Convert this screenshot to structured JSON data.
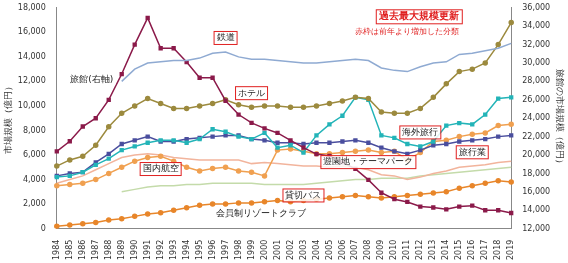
{
  "chart_data": {
    "type": "line",
    "y_label": "市場規模（億円）",
    "y2_label": "旅館の市場規模（億円）",
    "annotations": [
      "過去最大規模更新",
      "赤枠は前年より増加した分類"
    ],
    "categories": [
      "1984",
      "1985",
      "1986",
      "1987",
      "1988",
      "1989",
      "1990",
      "1991",
      "1992",
      "1993",
      "1994",
      "1995",
      "1996",
      "1997",
      "1998",
      "1999",
      "2000",
      "2001",
      "2002",
      "2003",
      "2004",
      "2005",
      "2006",
      "2007",
      "2008",
      "2009",
      "2010",
      "2011",
      "2012",
      "2013",
      "2014",
      "2015",
      "2016",
      "2017",
      "2018",
      "2019"
    ],
    "ylim": [
      0,
      18000
    ],
    "yticks": [
      0,
      {
        "value": 2000,
        "label": "2,000"
      },
      {
        "value": 4000,
        "label": "4,000"
      },
      {
        "value": 6000,
        "label": "6,000"
      },
      {
        "value": 8000,
        "label": "8,000"
      },
      {
        "value": 10000,
        "label": "10,000"
      },
      {
        "value": 12000,
        "label": "12,000"
      },
      {
        "value": 14000,
        "label": "14,000"
      },
      {
        "value": 16000,
        "label": "16,000"
      },
      {
        "value": 18000,
        "label": "18,000"
      }
    ],
    "y2lim": [
      12000,
      36000
    ],
    "y2ticks": [
      {
        "value": 12000,
        "label": "12,000"
      },
      {
        "value": 14000,
        "label": "14,000"
      },
      {
        "value": 16000,
        "label": "16,000"
      },
      {
        "value": 18000,
        "label": "18,000"
      },
      {
        "value": 20000,
        "label": "20,000"
      },
      {
        "value": 22000,
        "label": "22,000"
      },
      {
        "value": 24000,
        "label": "24,000"
      },
      {
        "value": 26000,
        "label": "26,000"
      },
      {
        "value": 28000,
        "label": "28,000"
      },
      {
        "value": 30000,
        "label": "30,000"
      },
      {
        "value": 32000,
        "label": "32,000"
      },
      {
        "value": 34000,
        "label": "34,000"
      },
      {
        "value": 36000,
        "label": "36,000"
      }
    ],
    "grid": false,
    "series": [
      {
        "name": "鉄道",
        "color": "#8faad2",
        "marker": "none",
        "values": [
          null,
          null,
          null,
          null,
          null,
          12000,
          13000,
          13500,
          13600,
          13700,
          13700,
          13900,
          14300,
          14400,
          14000,
          13800,
          13800,
          13700,
          13600,
          13500,
          13500,
          13600,
          13700,
          13800,
          13700,
          13100,
          12900,
          12800,
          13200,
          13500,
          13600,
          14200,
          14300,
          14500,
          14700,
          15100
        ]
      },
      {
        "name": "旅館(右軸)",
        "color": "#8b1a4a",
        "marker": "square",
        "axis": "y2",
        "values": [
          20400,
          21500,
          23100,
          24000,
          26000,
          28800,
          32000,
          34900,
          31600,
          31600,
          30100,
          28400,
          28400,
          25900,
          24400,
          23500,
          22900,
          22400,
          21600,
          20800,
          20100,
          19900,
          19200,
          18500,
          17300,
          15900,
          15200,
          14900,
          14400,
          14300,
          14100,
          14400,
          14500,
          14000,
          14000,
          13700
        ]
      },
      {
        "name": "ホテル",
        "color": "#9c8a3e",
        "marker": "circle",
        "values": [
          5100,
          5600,
          5900,
          6800,
          8300,
          9400,
          10000,
          10600,
          10200,
          9800,
          9800,
          10000,
          10200,
          10500,
          10100,
          9900,
          10000,
          10000,
          9900,
          9900,
          10000,
          10200,
          10400,
          10700,
          10600,
          9500,
          9400,
          9400,
          9800,
          10700,
          11800,
          12800,
          13000,
          13500,
          15000,
          16800
        ]
      },
      {
        "name": "海外旅行",
        "color": "#23b4b8",
        "marker": "square",
        "values": [
          4200,
          4300,
          4600,
          5200,
          5700,
          6400,
          6700,
          7000,
          7200,
          7200,
          7000,
          7300,
          8100,
          7900,
          7500,
          7300,
          7800,
          6600,
          6800,
          6200,
          7600,
          8500,
          9200,
          10700,
          10500,
          7600,
          7400,
          6900,
          6700,
          7100,
          8400,
          8600,
          8500,
          9300,
          10600,
          10700
        ]
      },
      {
        "name": "旅行業",
        "color": "#4a4e9e",
        "marker": "square",
        "values": [
          4300,
          4500,
          4600,
          5400,
          6100,
          6900,
          7200,
          7500,
          7100,
          7100,
          7300,
          7400,
          7500,
          7600,
          7600,
          7300,
          7200,
          7000,
          7000,
          6900,
          7000,
          7000,
          7100,
          7200,
          7000,
          6600,
          6300,
          6100,
          6400,
          6800,
          6900,
          7100,
          7200,
          7300,
          7500,
          7600
        ]
      },
      {
        "name": "遊園地・テーマパーク",
        "color": "#f0a050",
        "marker": "circle",
        "values": [
          3500,
          3600,
          3700,
          4000,
          4500,
          5000,
          5500,
          5800,
          5900,
          5500,
          5000,
          4700,
          4900,
          5000,
          4700,
          4600,
          4300,
          6400,
          6500,
          6300,
          6100,
          6100,
          6200,
          6300,
          6400,
          6200,
          6300,
          5600,
          6200,
          7100,
          7200,
          7500,
          7700,
          7800,
          8400,
          8500
        ]
      },
      {
        "name": "国内航空",
        "color": "#f2b49c",
        "marker": "none",
        "values": [
          3700,
          4000,
          4300,
          4800,
          5300,
          5800,
          6000,
          6100,
          6000,
          5800,
          5700,
          5600,
          5600,
          5600,
          5600,
          5300,
          5400,
          5300,
          5200,
          5100,
          5100,
          5000,
          5100,
          5000,
          4800,
          4400,
          4300,
          4000,
          4200,
          4500,
          4700,
          5000,
          5100,
          5200,
          5400,
          5500
        ]
      },
      {
        "name": "貸切バス",
        "color": "#c4dbaa",
        "marker": "none",
        "values": [
          null,
          null,
          null,
          null,
          null,
          3000,
          3200,
          3400,
          3500,
          3500,
          3600,
          3600,
          3700,
          3700,
          3700,
          3700,
          3600,
          3600,
          3600,
          3600,
          3700,
          3800,
          3900,
          4000,
          4000,
          4100,
          4100,
          4100,
          4300,
          4400,
          4500,
          4600,
          4700,
          4800,
          4900,
          5000
        ]
      },
      {
        "name": "会員制リゾートクラブ",
        "color": "#e8862a",
        "marker": "circle",
        "values": [
          200,
          300,
          400,
          500,
          700,
          800,
          1000,
          1200,
          1300,
          1500,
          1700,
          1900,
          2000,
          2000,
          2100,
          2100,
          2200,
          2300,
          2200,
          2300,
          2400,
          2500,
          2600,
          2700,
          2600,
          2500,
          2600,
          2700,
          2800,
          2900,
          3000,
          3300,
          3500,
          3700,
          3900,
          3800
        ]
      }
    ]
  }
}
